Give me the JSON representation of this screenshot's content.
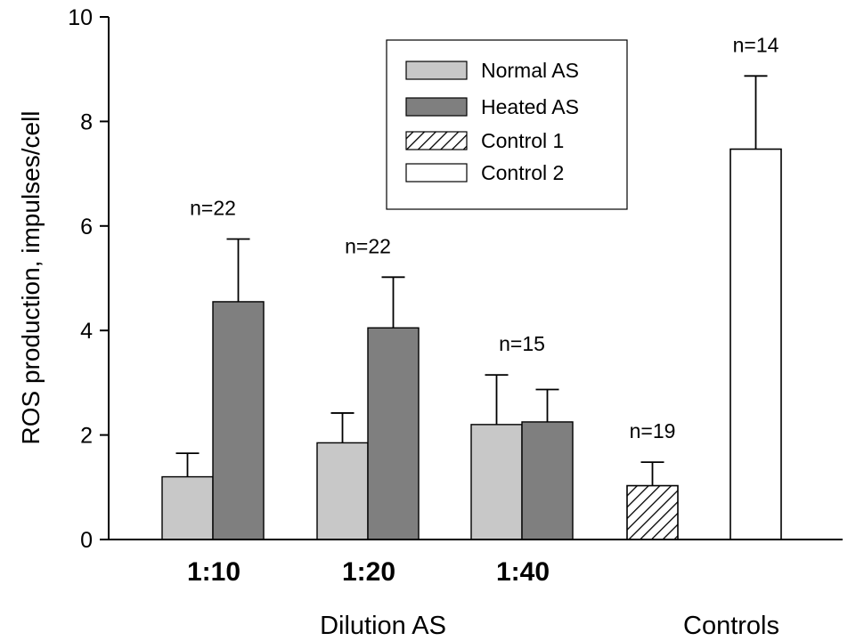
{
  "chart_data": {
    "type": "bar",
    "title": "",
    "ylabel": "ROS production, impulses/cell",
    "ylim": [
      0,
      10
    ],
    "yticks": [
      0,
      2,
      4,
      6,
      8,
      10
    ],
    "grid": false,
    "legend_position": "top-center",
    "categories": [
      "1:10",
      "1:20",
      "1:40"
    ],
    "series": [
      {
        "name": "Normal AS",
        "fill": "#c8c8c8",
        "pattern": "solid",
        "values": [
          1.2,
          1.85,
          2.2
        ],
        "errors": [
          0.45,
          0.57,
          0.95
        ]
      },
      {
        "name": "Heated AS",
        "fill": "#7f7f7f",
        "pattern": "solid",
        "values": [
          4.55,
          4.05,
          2.25
        ],
        "errors": [
          1.2,
          0.97,
          0.62
        ]
      }
    ],
    "controls": [
      {
        "name": "Control 1",
        "fill": "#ffffff",
        "pattern": "hatch",
        "value": 1.03,
        "error": 0.45,
        "n_label": "n=19"
      },
      {
        "name": "Control 2",
        "fill": "#ffffff",
        "pattern": "solid",
        "value": 7.47,
        "error": 1.4,
        "n_label": "n=14"
      }
    ],
    "n_labels": [
      "n=22",
      "n=22",
      "n=15"
    ],
    "group_labels": {
      "dilution": "Dilution AS",
      "controls": "Controls"
    }
  }
}
